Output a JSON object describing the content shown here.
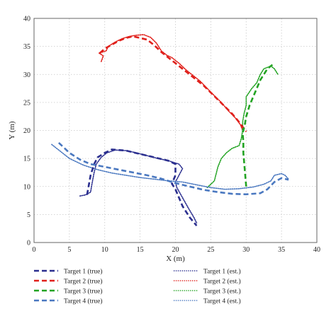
{
  "chart_data": {
    "type": "line",
    "xlabel": "X (m)",
    "ylabel": "Y (m)",
    "xlim": [
      0,
      40
    ],
    "ylim": [
      0,
      40
    ],
    "xticks": [
      "0",
      "5",
      "10",
      "15",
      "20",
      "25",
      "30",
      "35",
      "40"
    ],
    "yticks": [
      "0",
      "5",
      "10",
      "15",
      "20",
      "25",
      "30",
      "35",
      "40"
    ],
    "grid": true,
    "legend_placement": "bottom",
    "series": [
      {
        "name": "Target 1 (true)",
        "color": "#2b2f8f",
        "style": "dashed",
        "points": [
          [
            7.5,
            8.5
          ],
          [
            8,
            12
          ],
          [
            8.5,
            14
          ],
          [
            9,
            15.2
          ],
          [
            10,
            16
          ],
          [
            11,
            16.6
          ],
          [
            13,
            16.4
          ],
          [
            15,
            15.8
          ],
          [
            17,
            15.2
          ],
          [
            19,
            14.6
          ],
          [
            20,
            14
          ],
          [
            20,
            12
          ],
          [
            19.5,
            10.5
          ],
          [
            20,
            9.5
          ],
          [
            21,
            6.5
          ],
          [
            22,
            4.5
          ],
          [
            23,
            3
          ]
        ]
      },
      {
        "name": "Target 2 (true)",
        "color": "#e0201b",
        "style": "dashed",
        "points": [
          [
            9.3,
            33.8
          ],
          [
            10,
            34.6
          ],
          [
            11,
            35.3
          ],
          [
            12,
            36
          ],
          [
            13,
            36.5
          ],
          [
            14,
            36.8
          ],
          [
            15,
            36.5
          ],
          [
            16,
            36.2
          ],
          [
            17,
            35.2
          ],
          [
            18,
            34
          ],
          [
            19,
            33
          ],
          [
            20,
            32
          ],
          [
            22,
            30
          ],
          [
            24,
            28
          ],
          [
            26,
            25.5
          ],
          [
            28,
            23
          ],
          [
            29,
            21.5
          ],
          [
            30,
            19.8
          ]
        ]
      },
      {
        "name": "Target 3 (true)",
        "color": "#22a322",
        "style": "dashed",
        "points": [
          [
            30,
            10
          ],
          [
            29.8,
            13
          ],
          [
            29.6,
            16
          ],
          [
            29.6,
            18
          ],
          [
            29.5,
            19.5
          ],
          [
            29.8,
            21
          ],
          [
            30,
            22.5
          ],
          [
            30.5,
            24.5
          ],
          [
            31,
            26
          ],
          [
            31.5,
            27.5
          ],
          [
            32,
            29
          ],
          [
            32.5,
            30
          ],
          [
            33,
            31
          ],
          [
            34,
            32
          ]
        ]
      },
      {
        "name": "Target 4 (true)",
        "color": "#4a78c0",
        "style": "dashed",
        "points": [
          [
            3.5,
            17.8
          ],
          [
            5,
            16
          ],
          [
            6.5,
            14.8
          ],
          [
            8,
            14
          ],
          [
            10,
            13.5
          ],
          [
            12,
            13
          ],
          [
            14,
            12.5
          ],
          [
            16,
            12
          ],
          [
            18,
            11.4
          ],
          [
            20,
            10.6
          ],
          [
            22,
            10
          ],
          [
            24,
            9.4
          ],
          [
            26,
            9
          ],
          [
            28,
            8.7
          ],
          [
            30,
            8.6
          ],
          [
            32,
            8.8
          ],
          [
            33,
            9.5
          ],
          [
            34,
            10.8
          ],
          [
            35,
            11.5
          ],
          [
            36,
            11.2
          ]
        ]
      },
      {
        "name": "Target 1 (est.)",
        "color": "#2b2f8f",
        "style": "dotted",
        "points": [
          [
            6.5,
            8.3
          ],
          [
            7.3,
            8.5
          ],
          [
            8,
            9
          ],
          [
            8.2,
            10.5
          ],
          [
            8.5,
            12.5
          ],
          [
            8.8,
            14
          ],
          [
            9.5,
            15.2
          ],
          [
            10.3,
            16
          ],
          [
            11.5,
            16.5
          ],
          [
            13,
            16.4
          ],
          [
            14.5,
            16
          ],
          [
            16,
            15.5
          ],
          [
            17.5,
            15
          ],
          [
            19,
            14.6
          ],
          [
            20.5,
            14
          ],
          [
            21,
            13.2
          ],
          [
            20.5,
            12
          ],
          [
            20,
            10.8
          ],
          [
            20.2,
            9.8
          ],
          [
            21,
            8
          ],
          [
            21.8,
            6.2
          ],
          [
            22.6,
            4.5
          ],
          [
            23,
            3.5
          ]
        ]
      },
      {
        "name": "Target 2 (est.)",
        "color": "#e0201b",
        "style": "dotted",
        "points": [
          [
            9.5,
            32.3
          ],
          [
            9.8,
            33.3
          ],
          [
            9.2,
            33.8
          ],
          [
            10.2,
            34.2
          ],
          [
            10.5,
            35
          ],
          [
            11.5,
            35.8
          ],
          [
            12.5,
            36.4
          ],
          [
            13.5,
            36.8
          ],
          [
            14.5,
            37
          ],
          [
            15.5,
            37.1
          ],
          [
            16.5,
            36.6
          ],
          [
            17.3,
            35.6
          ],
          [
            18,
            34.2
          ],
          [
            18.8,
            33.4
          ],
          [
            19.5,
            33
          ],
          [
            20.5,
            32
          ],
          [
            21.5,
            30.8
          ],
          [
            22.5,
            29.8
          ],
          [
            23.5,
            28.8
          ],
          [
            24.5,
            27.5
          ],
          [
            25.5,
            26.2
          ],
          [
            26.5,
            25
          ],
          [
            27.5,
            23.5
          ],
          [
            28.5,
            22.2
          ],
          [
            29.2,
            21
          ],
          [
            29.5,
            20
          ]
        ]
      },
      {
        "name": "Target 3 (est.)",
        "color": "#22a322",
        "style": "dotted",
        "points": [
          [
            24.5,
            9.8
          ],
          [
            25.5,
            11
          ],
          [
            26,
            13.5
          ],
          [
            26.5,
            15
          ],
          [
            27.2,
            16
          ],
          [
            28,
            16.8
          ],
          [
            29,
            17.3
          ],
          [
            29.3,
            18.5
          ],
          [
            29.5,
            20
          ],
          [
            29.5,
            21.5
          ],
          [
            29.7,
            23
          ],
          [
            30,
            24.5
          ],
          [
            30,
            26
          ],
          [
            30.8,
            27.5
          ],
          [
            31.5,
            28.5
          ],
          [
            32,
            30
          ],
          [
            32.5,
            31
          ],
          [
            33.5,
            31.5
          ],
          [
            34,
            31
          ],
          [
            34.5,
            30
          ]
        ]
      },
      {
        "name": "Target 4 (est.)",
        "color": "#4a78c0",
        "style": "dotted",
        "points": [
          [
            2.5,
            17.5
          ],
          [
            3.5,
            16.5
          ],
          [
            5,
            15
          ],
          [
            7,
            13.8
          ],
          [
            9,
            13
          ],
          [
            11,
            12.4
          ],
          [
            13,
            12
          ],
          [
            15,
            11.6
          ],
          [
            17,
            11.3
          ],
          [
            19,
            11
          ],
          [
            21,
            10.8
          ],
          [
            23,
            10.3
          ],
          [
            25,
            9.8
          ],
          [
            27,
            9.5
          ],
          [
            29,
            9.6
          ],
          [
            31,
            9.9
          ],
          [
            32.5,
            10.4
          ],
          [
            33.5,
            11
          ],
          [
            34,
            12
          ],
          [
            35,
            12.3
          ],
          [
            35.5,
            12
          ],
          [
            36,
            11.3
          ]
        ]
      }
    ],
    "legend": [
      {
        "label": "Target 1 (true)",
        "color": "#2b2f8f",
        "style": "dashed"
      },
      {
        "label": "Target 2 (true)",
        "color": "#e0201b",
        "style": "dashed"
      },
      {
        "label": "Target 3 (true)",
        "color": "#22a322",
        "style": "dashed"
      },
      {
        "label": "Target 4 (true)",
        "color": "#4a78c0",
        "style": "dashed"
      },
      {
        "label": "Target 1 (est.)",
        "color": "#2b2f8f",
        "style": "dotted"
      },
      {
        "label": "Target 2 (est.)",
        "color": "#e0201b",
        "style": "dotted"
      },
      {
        "label": "Target 3 (est.)",
        "color": "#22a322",
        "style": "dotted"
      },
      {
        "label": "Target 4 (est.)",
        "color": "#4a78c0",
        "style": "dotted"
      }
    ]
  }
}
